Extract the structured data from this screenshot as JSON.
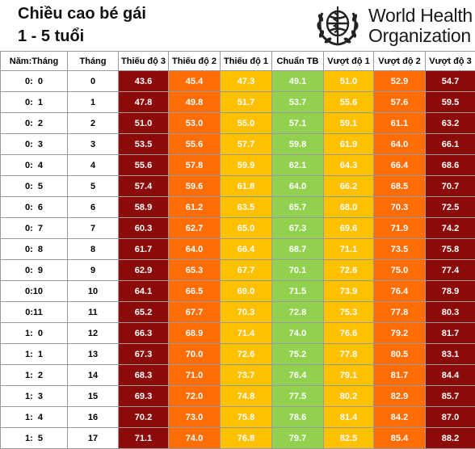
{
  "title_line1": "Chiều cao bé gái",
  "title_line2": "1 - 5 tuổi",
  "logo": {
    "line1": "World Health",
    "line2": "Organization",
    "icon": "who-emblem-icon"
  },
  "colors": {
    "severe": "#8b0a0a",
    "moderate": "#ff6d07",
    "mild": "#ffc000",
    "standard": "#92d050"
  },
  "table": {
    "headers": [
      "Năm:Tháng",
      "Tháng",
      "Thiếu độ 3",
      "Thiếu độ 2",
      "Thiếu độ 1",
      "Chuẩn TB",
      "Vượt độ 1",
      "Vượt độ 2",
      "Vượt độ 3"
    ],
    "rows": [
      [
        "0:  0",
        "0",
        "43.6",
        "45.4",
        "47.3",
        "49.1",
        "51.0",
        "52.9",
        "54.7"
      ],
      [
        "0:  1",
        "1",
        "47.8",
        "49.8",
        "51.7",
        "53.7",
        "55.6",
        "57.6",
        "59.5"
      ],
      [
        "0:  2",
        "2",
        "51.0",
        "53.0",
        "55.0",
        "57.1",
        "59.1",
        "61.1",
        "63.2"
      ],
      [
        "0:  3",
        "3",
        "53.5",
        "55.6",
        "57.7",
        "59.8",
        "61.9",
        "64.0",
        "66.1"
      ],
      [
        "0:  4",
        "4",
        "55.6",
        "57.8",
        "59.9",
        "62.1",
        "64.3",
        "66.4",
        "68.6"
      ],
      [
        "0:  5",
        "5",
        "57.4",
        "59.6",
        "61.8",
        "64.0",
        "66.2",
        "68.5",
        "70.7"
      ],
      [
        "0:  6",
        "6",
        "58.9",
        "61.2",
        "63.5",
        "65.7",
        "68.0",
        "70.3",
        "72.5"
      ],
      [
        "0:  7",
        "7",
        "60.3",
        "62.7",
        "65.0",
        "67.3",
        "69.6",
        "71.9",
        "74.2"
      ],
      [
        "0:  8",
        "8",
        "61.7",
        "64.0",
        "66.4",
        "68.7",
        "71.1",
        "73.5",
        "75.8"
      ],
      [
        "0:  9",
        "9",
        "62.9",
        "65.3",
        "67.7",
        "70.1",
        "72.6",
        "75.0",
        "77.4"
      ],
      [
        "0:10",
        "10",
        "64.1",
        "66.5",
        "69.0",
        "71.5",
        "73.9",
        "76.4",
        "78.9"
      ],
      [
        "0:11",
        "11",
        "65.2",
        "67.7",
        "70.3",
        "72.8",
        "75.3",
        "77.8",
        "80.3"
      ],
      [
        "1:  0",
        "12",
        "66.3",
        "68.9",
        "71.4",
        "74.0",
        "76.6",
        "79.2",
        "81.7"
      ],
      [
        "1:  1",
        "13",
        "67.3",
        "70.0",
        "72.6",
        "75.2",
        "77.8",
        "80.5",
        "83.1"
      ],
      [
        "1:  2",
        "14",
        "68.3",
        "71.0",
        "73.7",
        "76.4",
        "79.1",
        "81.7",
        "84.4"
      ],
      [
        "1:  3",
        "15",
        "69.3",
        "72.0",
        "74.8",
        "77.5",
        "80.2",
        "82.9",
        "85.7"
      ],
      [
        "1:  4",
        "16",
        "70.2",
        "73.0",
        "75.8",
        "78.6",
        "81.4",
        "84.2",
        "87.0"
      ],
      [
        "1:  5",
        "17",
        "71.1",
        "74.0",
        "76.8",
        "79.7",
        "82.5",
        "85.4",
        "88.2"
      ]
    ]
  }
}
